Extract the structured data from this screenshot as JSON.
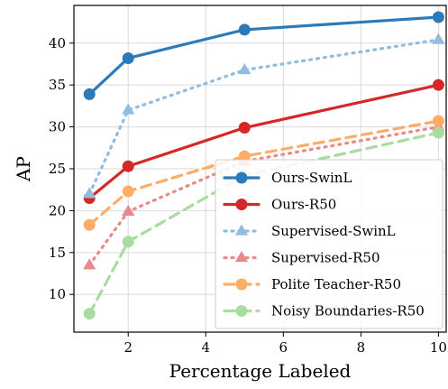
{
  "chart_data": {
    "type": "line",
    "title": "",
    "xlabel": "Percentage Labeled",
    "ylabel": "AP",
    "xlim": [
      0.6,
      10.2
    ],
    "ylim": [
      5.5,
      44.5
    ],
    "xticks": [
      2,
      4,
      6,
      8,
      10
    ],
    "yticks": [
      10,
      15,
      20,
      25,
      30,
      35,
      40
    ],
    "grid": true,
    "legend_position": "lower-right",
    "x": [
      1,
      2,
      5,
      10
    ],
    "series": [
      {
        "name": "Ours-SwinL",
        "values": [
          33.9,
          38.2,
          41.6,
          43.1
        ],
        "color": "#2b7bba",
        "line_style": "solid",
        "marker": "circle",
        "opacity": 1
      },
      {
        "name": "Ours-R50",
        "values": [
          21.5,
          25.3,
          29.9,
          35.0
        ],
        "color": "#d62728",
        "line_style": "solid",
        "marker": "circle",
        "opacity": 1
      },
      {
        "name": "Supervised-SwinL",
        "values": [
          22.0,
          32.0,
          36.8,
          40.4
        ],
        "color": "#8fbcdf",
        "line_style": "dotted",
        "marker": "triangle",
        "opacity": 1
      },
      {
        "name": "Supervised-R50",
        "values": [
          13.5,
          19.9,
          25.9,
          30.0
        ],
        "color": "#e78a8a",
        "line_style": "dotted",
        "marker": "triangle",
        "opacity": 1
      },
      {
        "name": "Polite Teacher-R50",
        "values": [
          18.3,
          22.3,
          26.5,
          30.7
        ],
        "color": "#fdad65",
        "line_style": "dashed",
        "marker": "circle",
        "opacity": 1
      },
      {
        "name": "Noisy Boundaries-R50",
        "values": [
          7.7,
          16.3,
          24.2,
          29.3
        ],
        "color": "#a9dca1",
        "line_style": "dashed",
        "marker": "circle",
        "opacity": 1
      }
    ]
  }
}
